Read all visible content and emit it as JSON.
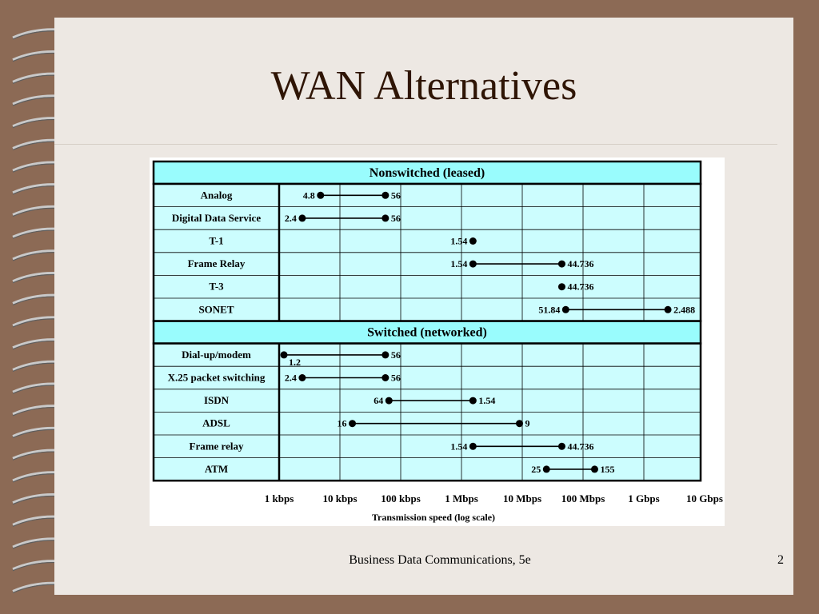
{
  "slide": {
    "title": "WAN Alternatives",
    "footer": "Business Data Communications, 5e",
    "page_number": "2"
  },
  "decorations": {
    "binding": "spiral-binding",
    "background_color": "#8c6a55",
    "slide_color": "#ede8e3"
  },
  "diagram": {
    "fill_color": "#ccfdfe",
    "header_color": "#99fcfd",
    "sections": [
      {
        "title": "Nonswitched (leased)",
        "rows": [
          {
            "label": "Analog",
            "from": 4.8,
            "to": 56,
            "from_label": "4.8",
            "to_label": "56",
            "from_pos": "left",
            "to_pos": "right"
          },
          {
            "label": "Digital Data Service",
            "from": 2.4,
            "to": 56,
            "from_label": "2.4",
            "to_label": "56",
            "from_pos": "left",
            "to_pos": "right"
          },
          {
            "label": "T-1",
            "from": 1544,
            "from_label": "1.54",
            "from_pos": "left"
          },
          {
            "label": "Frame Relay",
            "from": 1544,
            "to": 44736,
            "from_label": "1.54",
            "to_label": "44.736",
            "from_pos": "left",
            "to_pos": "right"
          },
          {
            "label": "T-3",
            "from": 44736,
            "from_label": "44.736",
            "from_pos": "right"
          },
          {
            "label": "SONET",
            "from": 51840,
            "to": 2488000,
            "from_label": "51.84",
            "to_label": "2.488",
            "from_pos": "left",
            "to_pos": "right"
          }
        ]
      },
      {
        "title": "Switched (networked)",
        "rows": [
          {
            "label": "Dial-up/modem",
            "from": 1.2,
            "to": 56,
            "from_label": "1.2",
            "to_label": "56",
            "from_pos": "below",
            "to_pos": "right"
          },
          {
            "label": "X.25 packet switching",
            "from": 2.4,
            "to": 56,
            "from_label": "2.4",
            "to_label": "56",
            "from_pos": "left",
            "to_pos": "right"
          },
          {
            "label": "ISDN",
            "from": 64,
            "to": 1544,
            "from_label": "64",
            "to_label": "1.54",
            "from_pos": "left",
            "to_pos": "right"
          },
          {
            "label": "ADSL",
            "from": 16,
            "to": 9000,
            "from_label": "16",
            "to_label": "9",
            "from_pos": "left",
            "to_pos": "right"
          },
          {
            "label": "Frame relay",
            "from": 1544,
            "to": 44736,
            "from_label": "1.54",
            "to_label": "44.736",
            "from_pos": "left",
            "to_pos": "right"
          },
          {
            "label": "ATM",
            "from": 25000,
            "to": 155000,
            "from_label": "25",
            "to_label": "155",
            "from_pos": "left",
            "to_pos": "right"
          }
        ]
      }
    ],
    "axis": {
      "title": "Transmission speed (log scale)",
      "unit": "kbps",
      "scale": "log",
      "ticks": [
        {
          "label": "1 kbps",
          "value": 1
        },
        {
          "label": "10 kbps",
          "value": 10
        },
        {
          "label": "100 kbps",
          "value": 100
        },
        {
          "label": "1 Mbps",
          "value": 1000
        },
        {
          "label": "10 Mbps",
          "value": 10000
        },
        {
          "label": "100 Mbps",
          "value": 100000
        },
        {
          "label": "1 Gbps",
          "value": 1000000
        },
        {
          "label": "10 Gbps",
          "value": 10000000
        }
      ]
    }
  }
}
